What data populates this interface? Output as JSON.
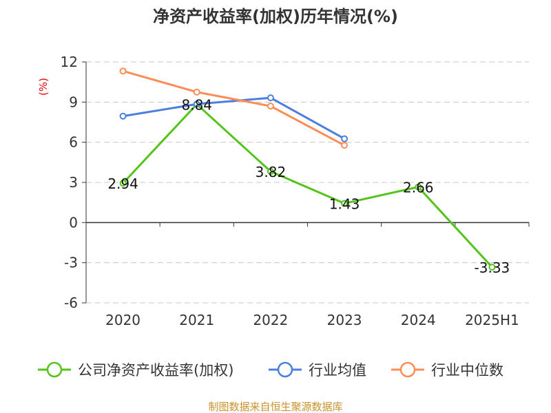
{
  "chart_data": {
    "type": "line",
    "title": "净资产收益率(加权)历年情况(%)",
    "ylabel": "(%)",
    "categories": [
      "2020",
      "2021",
      "2022",
      "2023",
      "2024",
      "2025H1"
    ],
    "ylim": [
      -6,
      12
    ],
    "yticks": [
      "12",
      "9",
      "6",
      "3",
      "0",
      "-3",
      "-6"
    ],
    "grid": true,
    "legend_position": "bottom",
    "series": [
      {
        "name": "公司净资产收益率(加权)",
        "color": "#52c41a",
        "values": [
          2.94,
          8.84,
          3.82,
          1.43,
          2.66,
          -3.33
        ],
        "labels": [
          "2.94",
          "8.84",
          "3.82",
          "1.43",
          "2.66",
          "-3.33"
        ]
      },
      {
        "name": "行业均值",
        "color": "#4a7fe0",
        "values": [
          7.95,
          8.85,
          9.32,
          6.26,
          null,
          null
        ]
      },
      {
        "name": "行业中位数",
        "color": "#ff8c55",
        "values": [
          11.32,
          9.75,
          8.7,
          5.77,
          null,
          null
        ]
      }
    ]
  },
  "source": "制图数据来自恒生聚源数据库"
}
